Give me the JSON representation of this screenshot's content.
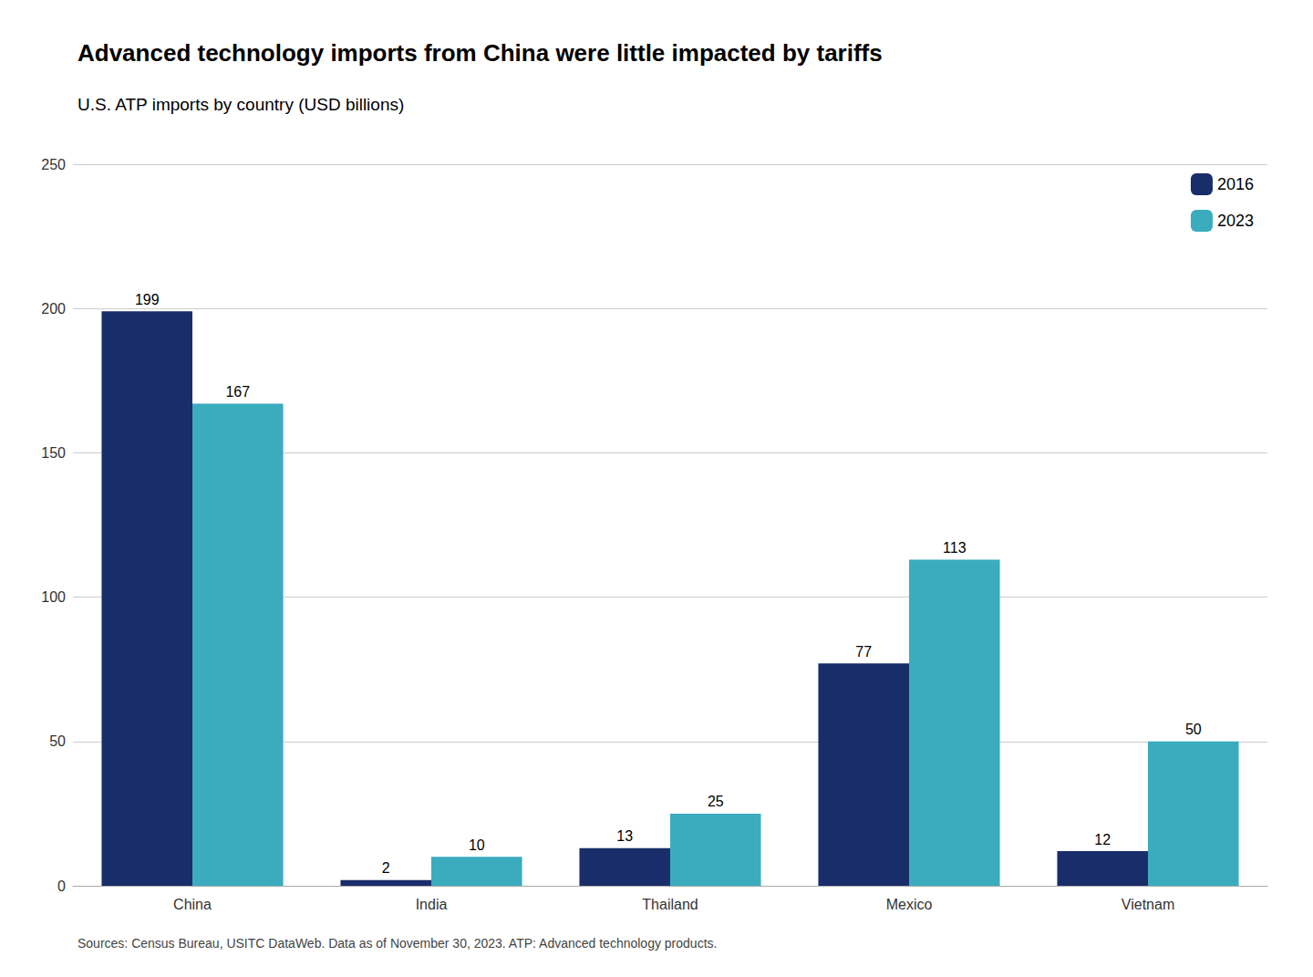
{
  "chart_data": {
    "type": "bar",
    "title": "Advanced technology imports from China were little impacted by tariffs",
    "subtitle": "U.S. ATP imports by country (USD billions)",
    "footnote": "Sources: Census Bureau, USITC DataWeb. Data as of November 30, 2023. ATP: Advanced technology products.",
    "categories": [
      "China",
      "India",
      "Thailand",
      "Mexico",
      "Vietnam"
    ],
    "series": [
      {
        "name": "2016",
        "color": "#1a2d6b",
        "values": [
          199,
          2,
          13,
          77,
          12
        ]
      },
      {
        "name": "2023",
        "color": "#3aacbe",
        "values": [
          167,
          10,
          25,
          113,
          50
        ]
      }
    ],
    "ylim": [
      0,
      250
    ],
    "yticks": [
      0,
      50,
      100,
      150,
      200,
      250
    ],
    "grid": true,
    "legend": "upper right",
    "data_labels": true
  }
}
